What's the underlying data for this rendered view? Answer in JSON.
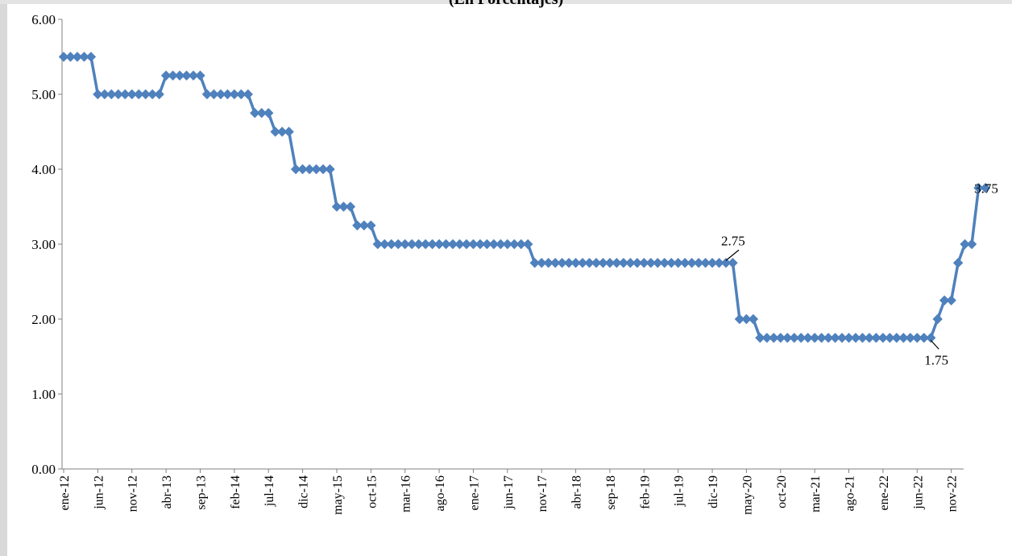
{
  "chart_data": {
    "type": "line",
    "title": "(En Porcentajes)",
    "xlabel": "",
    "ylabel": "",
    "ylim": [
      0,
      6
    ],
    "yticks": [
      "0.00",
      "1.00",
      "2.00",
      "3.00",
      "4.00",
      "5.00",
      "6.00"
    ],
    "grid": false,
    "legend": "none",
    "x_tick_labels": [
      "ene-12",
      "jun-12",
      "nov-12",
      "abr-13",
      "sep-13",
      "feb-14",
      "jul-14",
      "dic-14",
      "may-15",
      "oct-15",
      "mar-16",
      "ago-16",
      "ene-17",
      "jun-17",
      "nov-17",
      "abr-18",
      "sep-18",
      "feb-19",
      "jul-19",
      "dic-19",
      "may-20",
      "oct-20",
      "mar-21",
      "ago-21",
      "ene-22",
      "jun-22",
      "nov-22"
    ],
    "x_tick_every": 5,
    "series": [
      {
        "color": "#4f81bd",
        "marker": "diamond",
        "start_month": "ene-12",
        "values": [
          5.5,
          5.5,
          5.5,
          5.5,
          5.5,
          5.0,
          5.0,
          5.0,
          5.0,
          5.0,
          5.0,
          5.0,
          5.0,
          5.0,
          5.0,
          5.25,
          5.25,
          5.25,
          5.25,
          5.25,
          5.25,
          5.0,
          5.0,
          5.0,
          5.0,
          5.0,
          5.0,
          5.0,
          4.75,
          4.75,
          4.75,
          4.5,
          4.5,
          4.5,
          4.0,
          4.0,
          4.0,
          4.0,
          4.0,
          4.0,
          3.5,
          3.5,
          3.5,
          3.25,
          3.25,
          3.25,
          3.0,
          3.0,
          3.0,
          3.0,
          3.0,
          3.0,
          3.0,
          3.0,
          3.0,
          3.0,
          3.0,
          3.0,
          3.0,
          3.0,
          3.0,
          3.0,
          3.0,
          3.0,
          3.0,
          3.0,
          3.0,
          3.0,
          3.0,
          2.75,
          2.75,
          2.75,
          2.75,
          2.75,
          2.75,
          2.75,
          2.75,
          2.75,
          2.75,
          2.75,
          2.75,
          2.75,
          2.75,
          2.75,
          2.75,
          2.75,
          2.75,
          2.75,
          2.75,
          2.75,
          2.75,
          2.75,
          2.75,
          2.75,
          2.75,
          2.75,
          2.75,
          2.75,
          2.75,
          2.0,
          2.0,
          2.0,
          1.75,
          1.75,
          1.75,
          1.75,
          1.75,
          1.75,
          1.75,
          1.75,
          1.75,
          1.75,
          1.75,
          1.75,
          1.75,
          1.75,
          1.75,
          1.75,
          1.75,
          1.75,
          1.75,
          1.75,
          1.75,
          1.75,
          1.75,
          1.75,
          1.75,
          1.75,
          2.0,
          2.25,
          2.25,
          2.75,
          3.0,
          3.0,
          3.75,
          3.75
        ]
      }
    ],
    "annotations": [
      {
        "text": "2.75",
        "month": "feb-20",
        "value": 2.75
      },
      {
        "text": "1.75",
        "month": "ago-22",
        "value": 1.75
      },
      {
        "text": "3.75",
        "month": "dic-22",
        "value": 3.75
      }
    ]
  }
}
